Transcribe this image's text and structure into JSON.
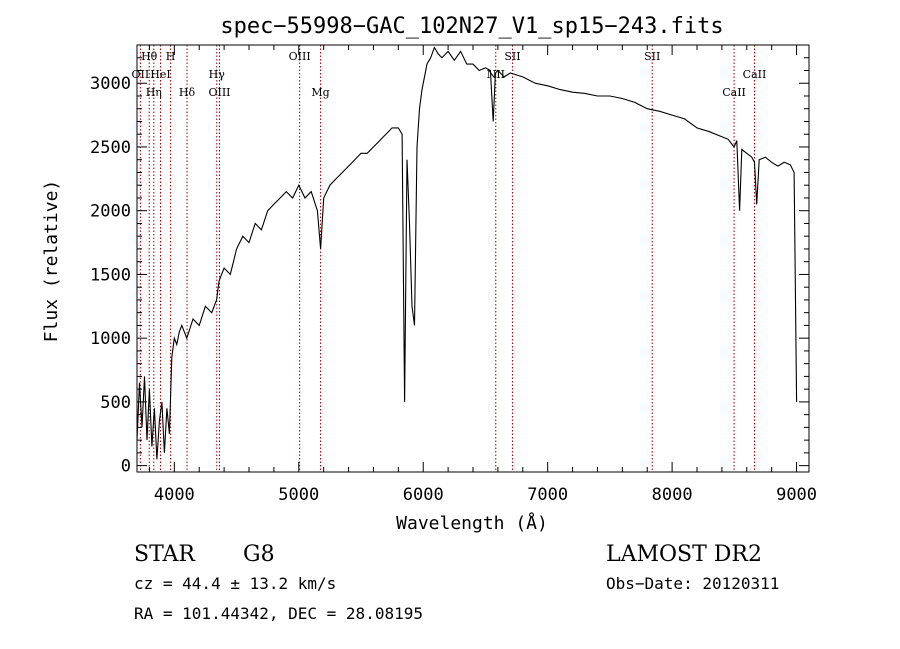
{
  "chart_data": {
    "type": "line",
    "title": "spec−55998−GAC_102N27_V1_sp15−243.fits",
    "xlabel": "Wavelength (Å)",
    "ylabel": "Flux (relative)",
    "xlim": [
      3700,
      9100
    ],
    "ylim": [
      -50,
      3300
    ],
    "xticks": [
      4000,
      5000,
      6000,
      7000,
      8000,
      9000
    ],
    "yticks": [
      0,
      500,
      1000,
      1500,
      2000,
      2500,
      3000
    ],
    "grid": false,
    "lines": [
      {
        "label": "Hθ",
        "x": 3798,
        "row": 0
      },
      {
        "label": "H",
        "x": 3970,
        "row": 0
      },
      {
        "label": "OII",
        "x": 3727,
        "row": 1
      },
      {
        "label": "HeI",
        "x": 3889,
        "row": 1
      },
      {
        "label": "Hγ",
        "x": 4341,
        "row": 1
      },
      {
        "label": "OIII",
        "x": 5007,
        "row": 0
      },
      {
        "label": "SII",
        "x": 6717,
        "row": 0
      },
      {
        "label": "OIII",
        "x": 4363,
        "row": 2
      },
      {
        "label": "Hη",
        "x": 3835,
        "row": 2
      },
      {
        "label": "Hδ",
        "x": 4102,
        "row": 2
      },
      {
        "label": "Mg",
        "x": 5175,
        "row": 2
      },
      {
        "label": "NII",
        "x": 6583,
        "row": 1
      },
      {
        "label": "SII",
        "x": 7840,
        "row": 0
      },
      {
        "label": "CaII",
        "x": 8662,
        "row": 1
      },
      {
        "label": "CaII",
        "x": 8498,
        "row": 2
      }
    ],
    "spectrum": {
      "x": [
        3700,
        3720,
        3740,
        3760,
        3780,
        3800,
        3820,
        3840,
        3860,
        3880,
        3900,
        3920,
        3940,
        3960,
        3980,
        4000,
        4020,
        4040,
        4060,
        4080,
        4100,
        4150,
        4200,
        4250,
        4300,
        4340,
        4360,
        4400,
        4450,
        4500,
        4550,
        4600,
        4650,
        4700,
        4750,
        4800,
        4850,
        4900,
        4950,
        5000,
        5050,
        5100,
        5150,
        5175,
        5200,
        5250,
        5300,
        5350,
        5400,
        5450,
        5500,
        5550,
        5600,
        5650,
        5700,
        5750,
        5800,
        5830,
        5850,
        5870,
        5890,
        5910,
        5930,
        5950,
        5970,
        5990,
        6010,
        6030,
        6060,
        6090,
        6120,
        6150,
        6200,
        6250,
        6300,
        6350,
        6400,
        6450,
        6500,
        6540,
        6562,
        6580,
        6600,
        6650,
        6700,
        6800,
        6900,
        7000,
        7100,
        7200,
        7300,
        7400,
        7500,
        7600,
        7700,
        7800,
        7900,
        8000,
        8100,
        8200,
        8300,
        8400,
        8450,
        8498,
        8520,
        8542,
        8560,
        8600,
        8640,
        8662,
        8680,
        8700,
        8750,
        8800,
        8850,
        8900,
        8950,
        8980,
        9000
      ],
      "y": [
        200,
        650,
        300,
        700,
        200,
        600,
        150,
        450,
        50,
        350,
        500,
        100,
        450,
        250,
        850,
        1000,
        950,
        1050,
        1100,
        1050,
        1000,
        1150,
        1100,
        1250,
        1200,
        1300,
        1450,
        1550,
        1500,
        1700,
        1800,
        1750,
        1900,
        1850,
        2000,
        2050,
        2100,
        2150,
        2100,
        2200,
        2100,
        2150,
        2000,
        1700,
        2100,
        2200,
        2250,
        2300,
        2350,
        2400,
        2450,
        2450,
        2500,
        2550,
        2600,
        2650,
        2650,
        2600,
        500,
        2400,
        1900,
        1250,
        1100,
        2500,
        2800,
        2950,
        3050,
        3150,
        3200,
        3280,
        3230,
        3200,
        3250,
        3180,
        3250,
        3150,
        3150,
        3100,
        3120,
        3100,
        2700,
        3080,
        3100,
        3050,
        3080,
        3050,
        3000,
        2980,
        2950,
        2930,
        2920,
        2900,
        2900,
        2880,
        2850,
        2800,
        2780,
        2750,
        2720,
        2650,
        2620,
        2580,
        2560,
        2500,
        2550,
        2000,
        2480,
        2450,
        2420,
        2380,
        2050,
        2400,
        2420,
        2380,
        2350,
        2380,
        2360,
        2300,
        500
      ]
    }
  },
  "footer": {
    "object_type": "STAR",
    "subclass": "G8",
    "survey": "LAMOST DR2",
    "cz": "cz = 44.4 ± 13.2 km/s",
    "obs_date": "Obs−Date: 20120311",
    "coords": "RA = 101.44342, DEC =  28.08195"
  }
}
